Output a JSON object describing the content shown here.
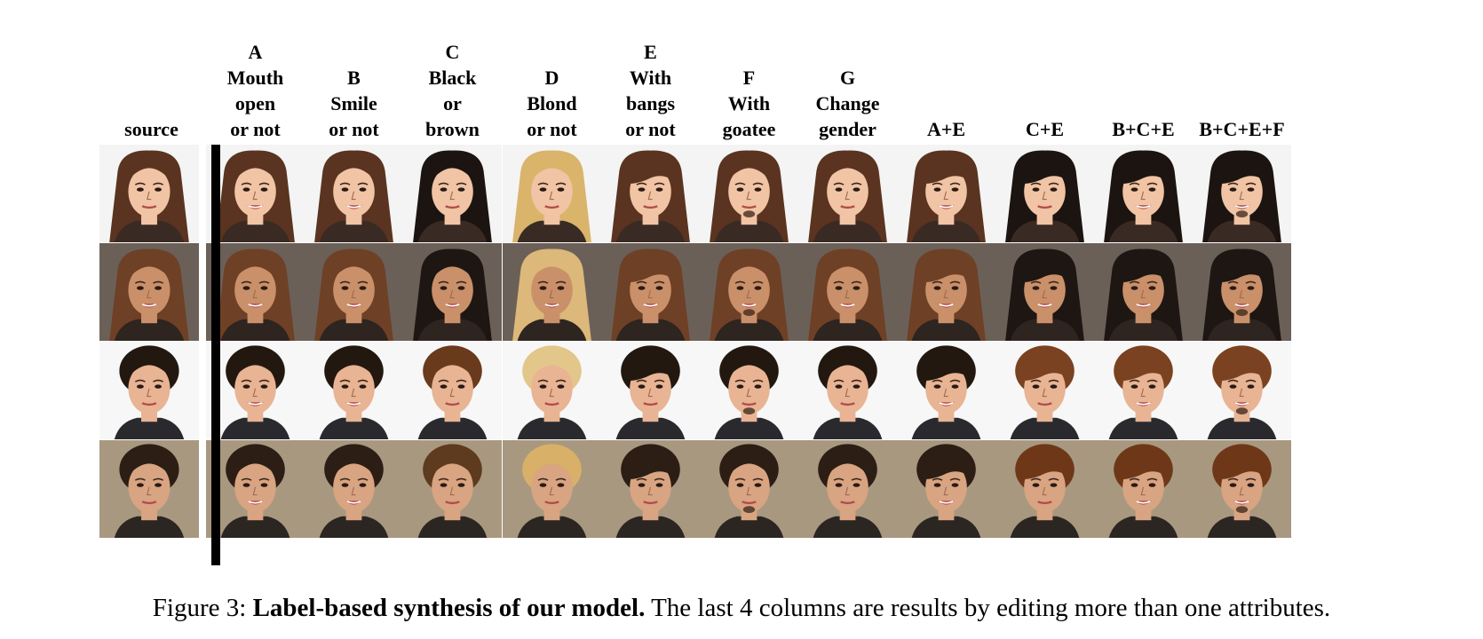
{
  "columns": [
    {
      "lines": [
        "source"
      ]
    },
    {
      "lines": [
        "A",
        "Mouth",
        "open",
        "or not"
      ]
    },
    {
      "lines": [
        "B",
        "Smile",
        "or not"
      ]
    },
    {
      "lines": [
        "C",
        "Black",
        "or",
        "brown"
      ]
    },
    {
      "lines": [
        "D",
        "Blond",
        "or not"
      ]
    },
    {
      "lines": [
        "E",
        "With",
        "bangs",
        "or not"
      ]
    },
    {
      "lines": [
        "F",
        "With",
        "goatee"
      ]
    },
    {
      "lines": [
        "G",
        "Change",
        "gender"
      ]
    },
    {
      "lines": [
        "A+E"
      ]
    },
    {
      "lines": [
        "C+E"
      ]
    },
    {
      "lines": [
        "B+C+E"
      ]
    },
    {
      "lines": [
        "B+C+E+F"
      ]
    }
  ],
  "rows": [
    {
      "background": "#f4f4f4",
      "skin": "#f0c4a4",
      "cloth": "#3a2a24",
      "hair": [
        "#5a3420",
        "#5a3420",
        "#5a3420",
        "#1c1410",
        "#d9b46a",
        "#5a3420",
        "#5a3420",
        "#5a3420",
        "#5a3420",
        "#1c1410",
        "#1c1410",
        "#1c1410"
      ]
    },
    {
      "background": "#6b6058",
      "skin": "#c9906a",
      "cloth": "#2e2420",
      "hair": [
        "#6e4026",
        "#6e4026",
        "#6e4026",
        "#1e1612",
        "#dcb87a",
        "#6e4026",
        "#6e4026",
        "#6e4026",
        "#6e4026",
        "#1e1612",
        "#1e1612",
        "#1e1612"
      ]
    },
    {
      "background": "#f7f7f7",
      "skin": "#e8b494",
      "cloth": "#2a2a2e",
      "hair": [
        "#22180f",
        "#22180f",
        "#22180f",
        "#6a3a1c",
        "#e2c68a",
        "#22180f",
        "#22180f",
        "#22180f",
        "#22180f",
        "#7a4220",
        "#7a4220",
        "#7a4220"
      ]
    },
    {
      "background": "#a89880",
      "skin": "#d8a482",
      "cloth": "#2c2622",
      "hair": [
        "#2c1e14",
        "#2c1e14",
        "#2c1e14",
        "#5e3a1e",
        "#d8b068",
        "#2c1e14",
        "#2c1e14",
        "#2c1e14",
        "#2c1e14",
        "#6e3818",
        "#6e3818",
        "#6e3818"
      ]
    }
  ],
  "caption": {
    "prefix": "Figure 3: ",
    "bold": "Label-based synthesis of our model.",
    "rest": " The last 4 columns are results by editing more than one attributes."
  }
}
